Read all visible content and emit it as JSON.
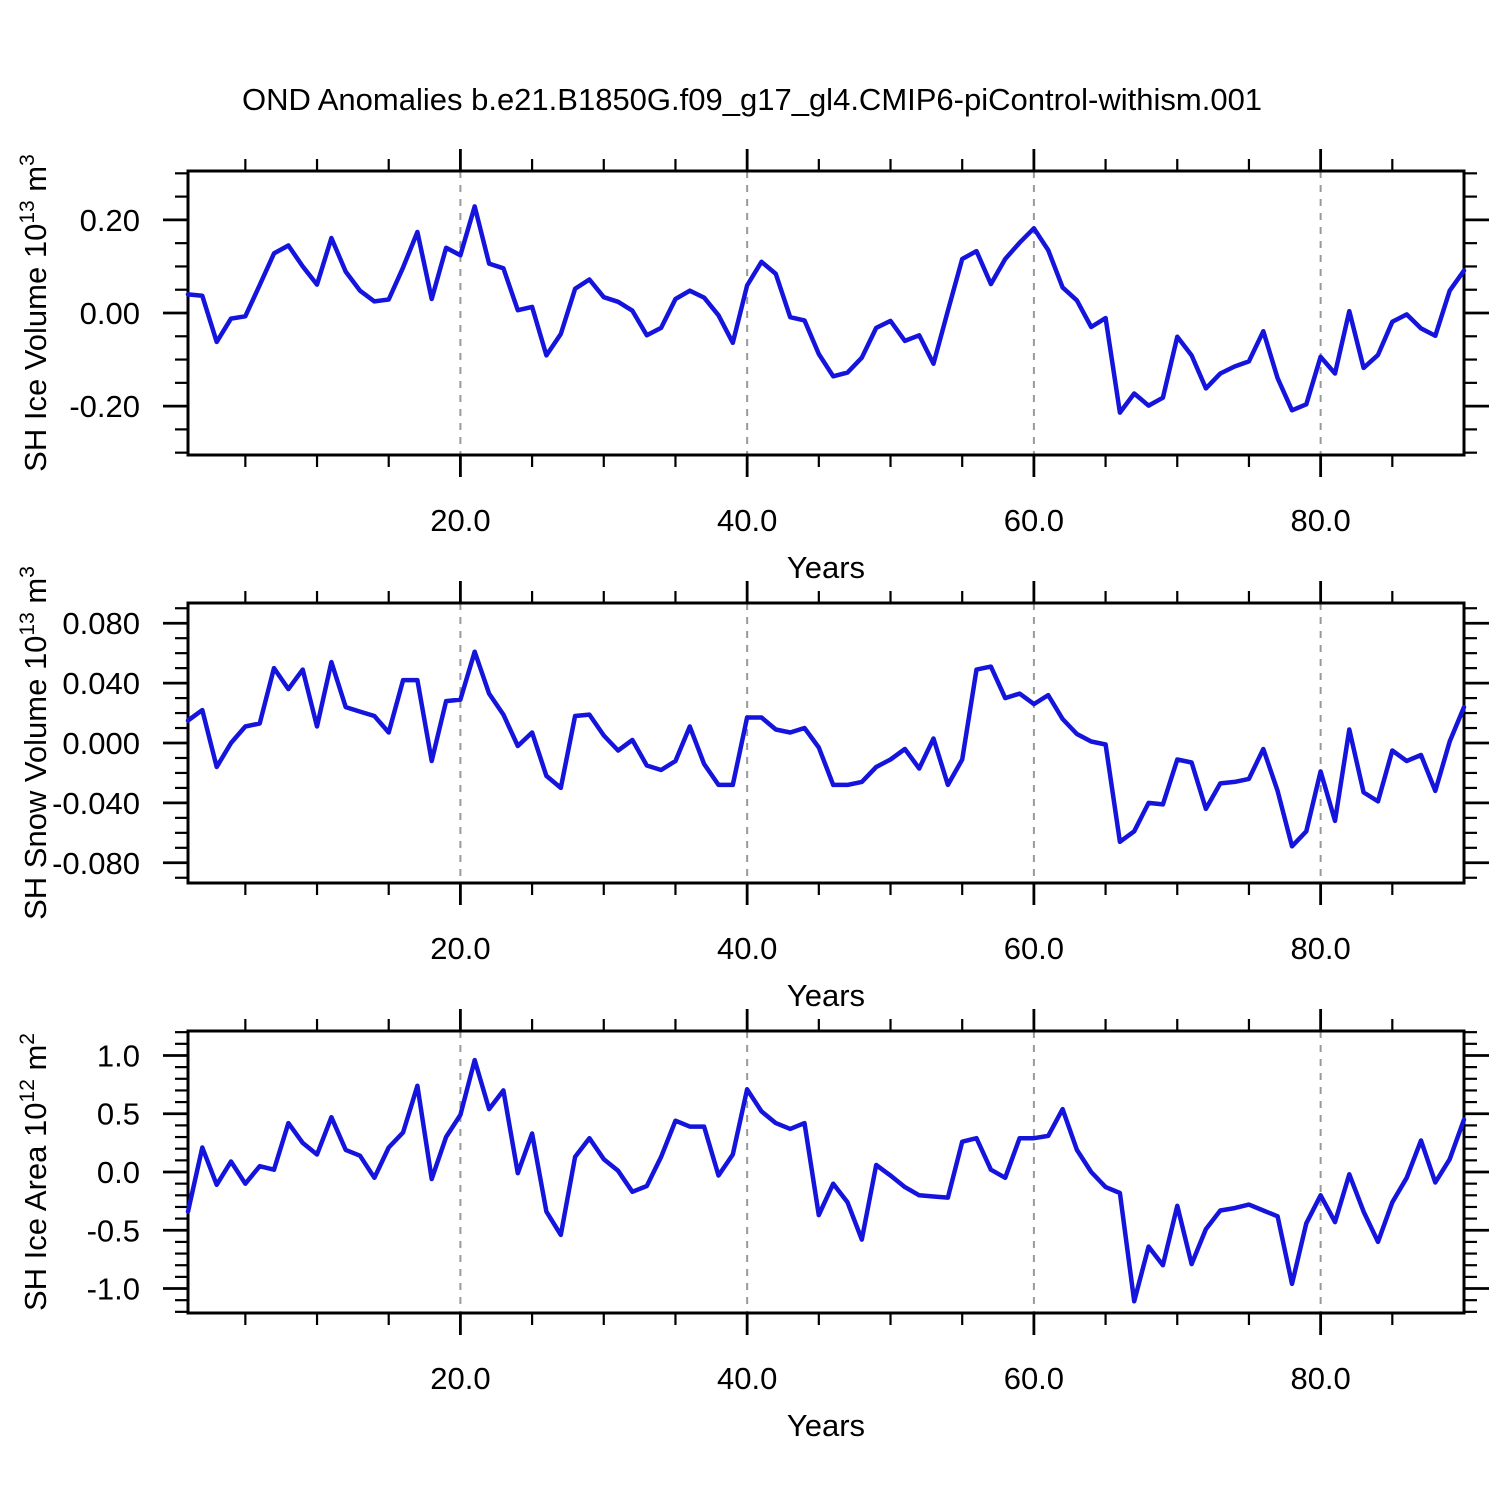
{
  "title": "OND Anomalies b.e21.B1850G.f09_g17_gl4.CMIP6-piControl-withism.001",
  "line_color": "#1414dd",
  "grid_color": "#999999",
  "frame_color": "#000000",
  "xaxis": {
    "label": "Years",
    "range": [
      1,
      90
    ],
    "major_ticks": [
      20,
      40,
      60,
      80
    ],
    "major_labels": [
      "20.0",
      "40.0",
      "60.0",
      "80.0"
    ],
    "minor_step": 5
  },
  "chart_data": [
    {
      "type": "line",
      "name": "sh-ice-volume",
      "ylabel_parts": [
        [
          "SH Ice Volume 10",
          false
        ],
        [
          "13",
          true
        ],
        [
          " m",
          false
        ],
        [
          "3",
          true
        ]
      ],
      "ylabel_text": "SH Ice Volume 10^13 m^3",
      "ylim": [
        -0.305,
        0.305
      ],
      "yticks": [
        0.2,
        0.0,
        -0.2
      ],
      "ytick_labels": [
        "0.20",
        "0.00",
        "-0.20"
      ],
      "y_minor_step": 0.05,
      "x": "years 1-90",
      "values": [
        0.04,
        0.037,
        -0.062,
        -0.012,
        -0.007,
        0.06,
        0.128,
        0.145,
        0.1,
        0.061,
        0.161,
        0.089,
        0.048,
        0.025,
        0.029,
        0.098,
        0.174,
        0.03,
        0.14,
        0.124,
        0.229,
        0.106,
        0.096,
        0.006,
        0.013,
        -0.091,
        -0.045,
        0.052,
        0.072,
        0.034,
        0.024,
        0.005,
        -0.048,
        -0.032,
        0.03,
        0.048,
        0.033,
        -0.005,
        -0.064,
        0.059,
        0.11,
        0.084,
        -0.009,
        -0.016,
        -0.088,
        -0.136,
        -0.128,
        -0.096,
        -0.032,
        -0.017,
        -0.06,
        -0.048,
        -0.109,
        0.005,
        0.116,
        0.133,
        0.062,
        0.116,
        0.151,
        0.182,
        0.135,
        0.055,
        0.027,
        -0.03,
        -0.011,
        -0.214,
        -0.173,
        -0.199,
        -0.182,
        -0.051,
        -0.091,
        -0.162,
        -0.13,
        -0.115,
        -0.104,
        -0.039,
        -0.14,
        -0.209,
        -0.196,
        -0.094,
        -0.13,
        0.004,
        -0.118,
        -0.09,
        -0.019,
        -0.003,
        -0.033,
        -0.049,
        0.048,
        0.091
      ]
    },
    {
      "type": "line",
      "name": "sh-snow-volume",
      "ylabel_parts": [
        [
          "SH Snow Volume 10",
          false
        ],
        [
          "13",
          true
        ],
        [
          " m",
          false
        ],
        [
          "3",
          true
        ]
      ],
      "ylabel_text": "SH Snow Volume 10^13 m^3",
      "ylim": [
        -0.0935,
        0.0935
      ],
      "yticks": [
        0.08,
        0.04,
        0.0,
        -0.04,
        -0.08
      ],
      "ytick_labels": [
        "0.080",
        "0.040",
        "0.000",
        "-0.040",
        "-0.080"
      ],
      "y_minor_step": 0.01,
      "x": "years 1-90",
      "values": [
        0.015,
        0.022,
        -0.016,
        0.0,
        0.011,
        0.013,
        0.05,
        0.036,
        0.049,
        0.011,
        0.054,
        0.024,
        0.021,
        0.018,
        0.007,
        0.042,
        0.042,
        -0.012,
        0.028,
        0.029,
        0.061,
        0.033,
        0.019,
        -0.002,
        0.007,
        -0.022,
        -0.03,
        0.018,
        0.019,
        0.005,
        -0.005,
        0.002,
        -0.015,
        -0.018,
        -0.012,
        0.011,
        -0.014,
        -0.028,
        -0.028,
        0.017,
        0.017,
        0.009,
        0.007,
        0.01,
        -0.003,
        -0.028,
        -0.028,
        -0.026,
        -0.016,
        -0.011,
        -0.004,
        -0.017,
        0.003,
        -0.028,
        -0.011,
        0.049,
        0.051,
        0.03,
        0.033,
        0.026,
        0.032,
        0.016,
        0.006,
        0.001,
        -0.001,
        -0.066,
        -0.059,
        -0.04,
        -0.041,
        -0.011,
        -0.013,
        -0.044,
        -0.027,
        -0.026,
        -0.024,
        -0.004,
        -0.032,
        -0.069,
        -0.059,
        -0.019,
        -0.052,
        0.009,
        -0.033,
        -0.039,
        -0.005,
        -0.012,
        -0.008,
        -0.032,
        0.001,
        0.024
      ]
    },
    {
      "type": "line",
      "name": "sh-ice-area",
      "ylabel_parts": [
        [
          "SH Ice Area 10",
          false
        ],
        [
          "12",
          true
        ],
        [
          " m",
          false
        ],
        [
          "2",
          true
        ]
      ],
      "ylabel_text": "SH Ice Area 10^12 m^2",
      "ylim": [
        -1.21,
        1.21
      ],
      "yticks": [
        1.0,
        0.5,
        0.0,
        -0.5,
        -1.0
      ],
      "ytick_labels": [
        "1.0",
        "0.5",
        "0.0",
        "-0.5",
        "-1.0"
      ],
      "y_minor_step": 0.1,
      "x": "years 1-90",
      "values": [
        -0.34,
        0.21,
        -0.11,
        0.09,
        -0.1,
        0.05,
        0.02,
        0.42,
        0.25,
        0.15,
        0.47,
        0.19,
        0.14,
        -0.05,
        0.21,
        0.34,
        0.74,
        -0.06,
        0.3,
        0.49,
        0.96,
        0.54,
        0.7,
        -0.01,
        0.33,
        -0.34,
        -0.54,
        0.13,
        0.29,
        0.11,
        0.01,
        -0.17,
        -0.12,
        0.13,
        0.44,
        0.39,
        0.39,
        -0.03,
        0.15,
        0.71,
        0.52,
        0.42,
        0.37,
        0.42,
        -0.37,
        -0.1,
        -0.26,
        -0.58,
        0.06,
        -0.03,
        -0.13,
        -0.2,
        -0.21,
        -0.22,
        0.26,
        0.29,
        0.02,
        -0.05,
        0.29,
        0.29,
        0.31,
        0.54,
        0.19,
        0.0,
        -0.13,
        -0.18,
        -1.11,
        -0.64,
        -0.8,
        -0.29,
        -0.79,
        -0.49,
        -0.33,
        -0.31,
        -0.28,
        -0.33,
        -0.38,
        -0.96,
        -0.44,
        -0.2,
        -0.43,
        -0.02,
        -0.34,
        -0.6,
        -0.26,
        -0.05,
        0.27,
        -0.09,
        0.11,
        0.45
      ]
    }
  ]
}
